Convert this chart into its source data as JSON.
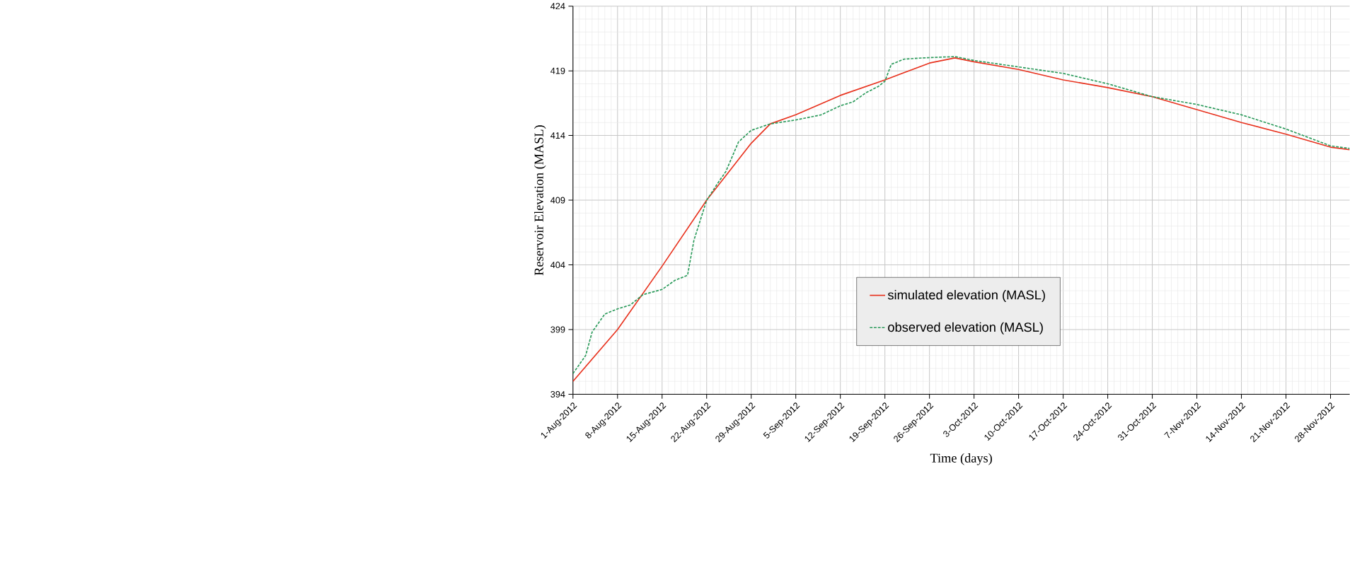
{
  "chart_data": {
    "type": "line",
    "xlabel": "Time (days)",
    "ylabel": "Reservoir Elevation (MASL)",
    "xlim": [
      "2012-08-01",
      "2012-12-01"
    ],
    "ylim": [
      394,
      424
    ],
    "xticks": [
      {
        "value": "2012-08-01",
        "label": "1-Aug-2012"
      },
      {
        "value": "2012-08-08",
        "label": "8-Aug-2012"
      },
      {
        "value": "2012-08-15",
        "label": "15-Aug-2012"
      },
      {
        "value": "2012-08-22",
        "label": "22-Aug-2012"
      },
      {
        "value": "2012-08-29",
        "label": "29-Aug-2012"
      },
      {
        "value": "2012-09-05",
        "label": "5-Sep-2012"
      },
      {
        "value": "2012-09-12",
        "label": "12-Sep-2012"
      },
      {
        "value": "2012-09-19",
        "label": "19-Sep-2012"
      },
      {
        "value": "2012-09-26",
        "label": "26-Sep-2012"
      },
      {
        "value": "2012-10-03",
        "label": "3-Oct-2012"
      },
      {
        "value": "2012-10-10",
        "label": "10-Oct-2012"
      },
      {
        "value": "2012-10-17",
        "label": "17-Oct-2012"
      },
      {
        "value": "2012-10-24",
        "label": "24-Oct-2012"
      },
      {
        "value": "2012-10-31",
        "label": "31-Oct-2012"
      },
      {
        "value": "2012-11-07",
        "label": "7-Nov-2012"
      },
      {
        "value": "2012-11-14",
        "label": "14-Nov-2012"
      },
      {
        "value": "2012-11-21",
        "label": "21-Nov-2012"
      },
      {
        "value": "2012-11-28",
        "label": "28-Nov-2012"
      }
    ],
    "yticks": [
      394,
      399,
      404,
      409,
      414,
      419,
      424
    ],
    "grid": true,
    "legend": "center",
    "marker": "none",
    "series": [
      {
        "name": "simulated elevation (MASL)",
        "color": "#e8321e",
        "line_style": "solid",
        "x": [
          "2012-08-01",
          "2012-08-08",
          "2012-08-15",
          "2012-08-22",
          "2012-08-29",
          "2012-09-01",
          "2012-09-05",
          "2012-09-12",
          "2012-09-19",
          "2012-09-26",
          "2012-09-30",
          "2012-10-03",
          "2012-10-10",
          "2012-10-17",
          "2012-10-24",
          "2012-10-31",
          "2012-11-07",
          "2012-11-14",
          "2012-11-21",
          "2012-11-28",
          "2012-12-01"
        ],
        "values": [
          395.0,
          399.0,
          403.9,
          409.0,
          413.4,
          414.9,
          415.6,
          417.1,
          418.3,
          419.6,
          420.0,
          419.7,
          419.1,
          418.3,
          417.7,
          417.0,
          416.0,
          415.0,
          414.1,
          413.1,
          412.9
        ]
      },
      {
        "name": "observed elevation (MASL)",
        "color": "#2a9a5a",
        "line_style": "dashed",
        "x": [
          "2012-08-01",
          "2012-08-03",
          "2012-08-04",
          "2012-08-06",
          "2012-08-08",
          "2012-08-10",
          "2012-08-12",
          "2012-08-15",
          "2012-08-17",
          "2012-08-19",
          "2012-08-20",
          "2012-08-22",
          "2012-08-24",
          "2012-08-25",
          "2012-08-27",
          "2012-08-29",
          "2012-09-01",
          "2012-09-05",
          "2012-09-09",
          "2012-09-12",
          "2012-09-14",
          "2012-09-16",
          "2012-09-18",
          "2012-09-19",
          "2012-09-20",
          "2012-09-22",
          "2012-09-25",
          "2012-09-30",
          "2012-10-03",
          "2012-10-10",
          "2012-10-17",
          "2012-10-24",
          "2012-10-31",
          "2012-11-07",
          "2012-11-14",
          "2012-11-21",
          "2012-11-28",
          "2012-12-01"
        ],
        "values": [
          395.6,
          397.0,
          398.8,
          400.2,
          400.6,
          400.9,
          401.7,
          402.1,
          402.8,
          403.2,
          405.9,
          409.0,
          410.5,
          411.2,
          413.5,
          414.4,
          414.9,
          415.2,
          415.6,
          416.3,
          416.6,
          417.3,
          417.8,
          418.2,
          419.5,
          419.9,
          420.0,
          420.1,
          419.8,
          419.3,
          418.8,
          418.0,
          417.0,
          416.4,
          415.6,
          414.5,
          413.2,
          413.0
        ]
      }
    ]
  }
}
